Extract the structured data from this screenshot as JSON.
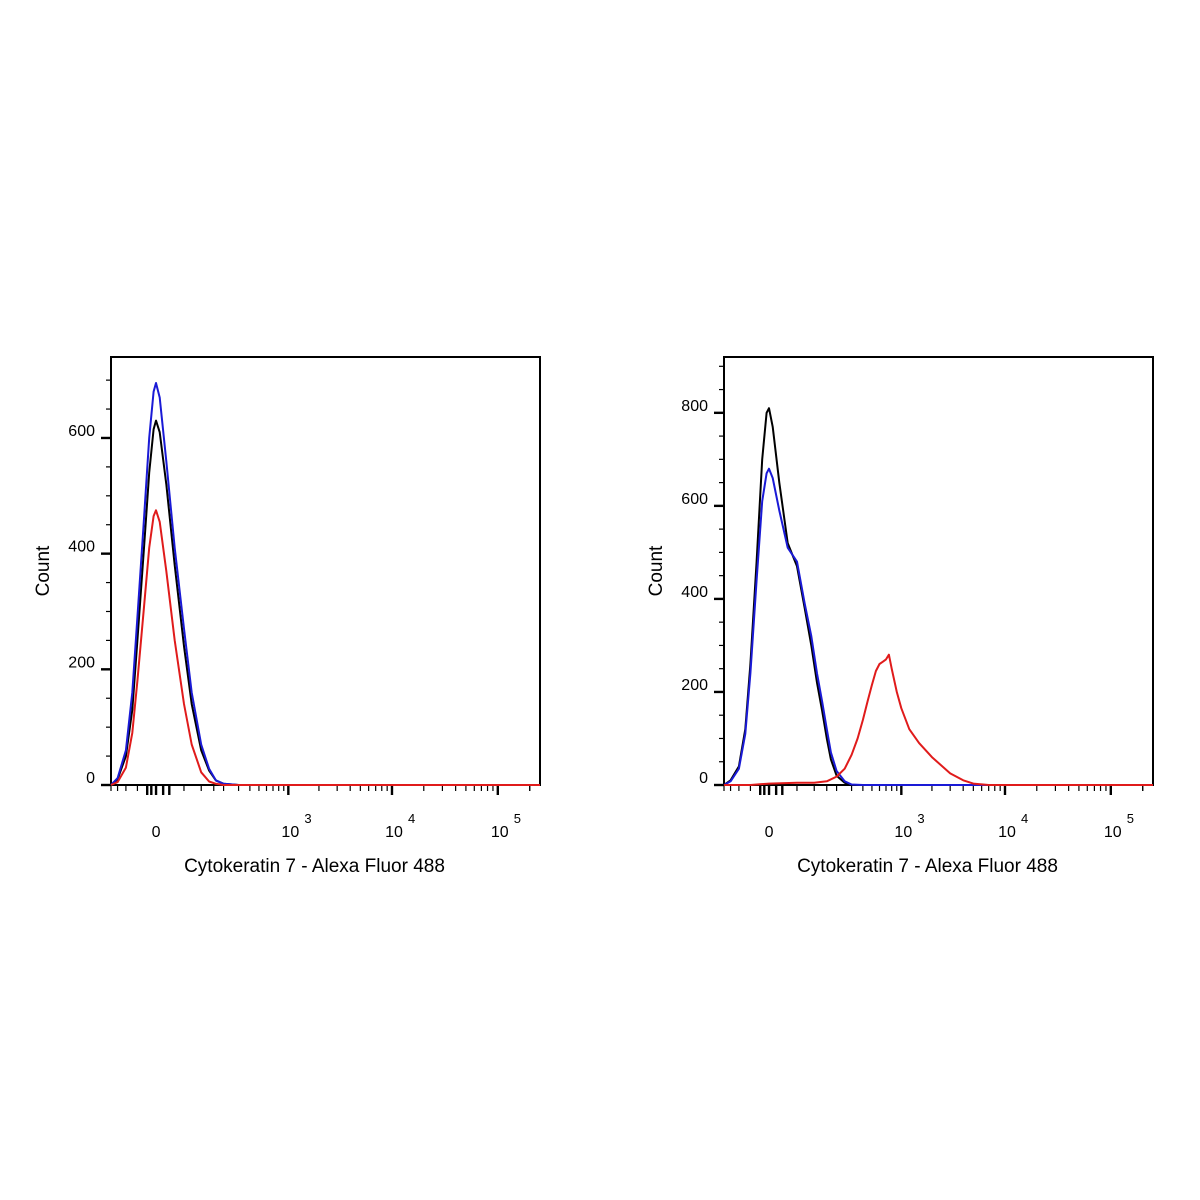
{
  "chart_data": [
    {
      "type": "line",
      "xlabel": "Cytokeratin 7 - Alexa Fluor 488",
      "ylabel": "Count",
      "x_scale": "biexponential",
      "xlim": [
        -200,
        250000
      ],
      "ylim": [
        0,
        740
      ],
      "x_ticks": [
        {
          "base": "0",
          "exp": "",
          "value": 0
        },
        {
          "base": "10",
          "exp": "3",
          "value": 1000
        },
        {
          "base": "10",
          "exp": "4",
          "value": 10000
        },
        {
          "base": "10",
          "exp": "5",
          "value": 100000
        }
      ],
      "y_ticks": [
        {
          "label": "0",
          "value": 0
        },
        {
          "label": "200",
          "value": 200
        },
        {
          "label": "400",
          "value": 400
        },
        {
          "label": "600",
          "value": 600
        }
      ],
      "grid": false,
      "series": [
        {
          "color": "#000000",
          "x": [
            -200,
            -150,
            -100,
            -70,
            -50,
            -30,
            -15,
            -5,
            0,
            5,
            15,
            30,
            50,
            70,
            100,
            130,
            160,
            200,
            300,
            1000,
            10000,
            250000
          ],
          "y": [
            0,
            10,
            50,
            130,
            250,
            400,
            540,
            615,
            630,
            610,
            520,
            380,
            240,
            140,
            60,
            25,
            8,
            2,
            0,
            0,
            0,
            0
          ]
        },
        {
          "color": "#1a1ad6",
          "x": [
            -200,
            -150,
            -100,
            -70,
            -50,
            -30,
            -15,
            -5,
            0,
            5,
            15,
            30,
            50,
            70,
            100,
            130,
            160,
            200,
            300,
            1000,
            10000,
            250000
          ],
          "y": [
            0,
            12,
            60,
            160,
            290,
            450,
            600,
            680,
            695,
            670,
            560,
            410,
            270,
            160,
            70,
            28,
            8,
            2,
            0,
            0,
            0,
            0
          ]
        },
        {
          "color": "#e01b1b",
          "x": [
            -200,
            -150,
            -100,
            -70,
            -50,
            -30,
            -15,
            -5,
            0,
            5,
            15,
            30,
            50,
            70,
            100,
            130,
            160,
            200,
            300,
            1000,
            10000,
            250000
          ],
          "y": [
            0,
            5,
            30,
            90,
            180,
            300,
            410,
            465,
            475,
            455,
            370,
            250,
            140,
            70,
            22,
            6,
            2,
            0,
            0,
            0,
            0,
            0
          ]
        }
      ]
    },
    {
      "type": "line",
      "xlabel": "Cytokeratin 7 - Alexa Fluor 488",
      "ylabel": "Count",
      "x_scale": "biexponential",
      "xlim": [
        -200,
        250000
      ],
      "ylim": [
        0,
        920
      ],
      "x_ticks": [
        {
          "base": "0",
          "exp": "",
          "value": 0
        },
        {
          "base": "10",
          "exp": "3",
          "value": 1000
        },
        {
          "base": "10",
          "exp": "4",
          "value": 10000
        },
        {
          "base": "10",
          "exp": "5",
          "value": 100000
        }
      ],
      "y_ticks": [
        {
          "label": "0",
          "value": 0
        },
        {
          "label": "200",
          "value": 200
        },
        {
          "label": "400",
          "value": 400
        },
        {
          "label": "600",
          "value": 600
        },
        {
          "label": "800",
          "value": 800
        }
      ],
      "grid": false,
      "series": [
        {
          "color": "#000000",
          "x": [
            -200,
            -150,
            -100,
            -70,
            -50,
            -30,
            -15,
            -5,
            0,
            5,
            15,
            30,
            50,
            70,
            90,
            110,
            130,
            150,
            170,
            200,
            250,
            300,
            400,
            1000,
            10000,
            250000
          ],
          "y": [
            0,
            10,
            40,
            120,
            260,
            480,
            700,
            800,
            810,
            770,
            650,
            520,
            470,
            380,
            300,
            220,
            160,
            100,
            55,
            20,
            5,
            0,
            0,
            0,
            0,
            0
          ]
        },
        {
          "color": "#1a1ad6",
          "x": [
            -200,
            -150,
            -100,
            -70,
            -50,
            -30,
            -15,
            -5,
            0,
            5,
            15,
            30,
            50,
            70,
            90,
            110,
            130,
            150,
            170,
            200,
            250,
            300,
            400,
            1000,
            10000,
            250000
          ],
          "y": [
            0,
            8,
            35,
            110,
            240,
            440,
            610,
            670,
            680,
            660,
            590,
            510,
            480,
            390,
            320,
            240,
            180,
            120,
            70,
            30,
            8,
            1,
            0,
            0,
            0,
            0
          ]
        },
        {
          "color": "#e01b1b",
          "x": [
            -200,
            -50,
            0,
            50,
            100,
            150,
            200,
            250,
            300,
            350,
            400,
            450,
            500,
            550,
            600,
            650,
            700,
            750,
            800,
            900,
            1000,
            1200,
            1500,
            2000,
            3000,
            4000,
            5000,
            7000,
            10000,
            250000
          ],
          "y": [
            0,
            0,
            3,
            5,
            5,
            8,
            18,
            35,
            65,
            100,
            140,
            180,
            215,
            245,
            260,
            265,
            270,
            280,
            250,
            200,
            165,
            120,
            90,
            60,
            25,
            10,
            3,
            0,
            0,
            0
          ]
        }
      ]
    }
  ]
}
